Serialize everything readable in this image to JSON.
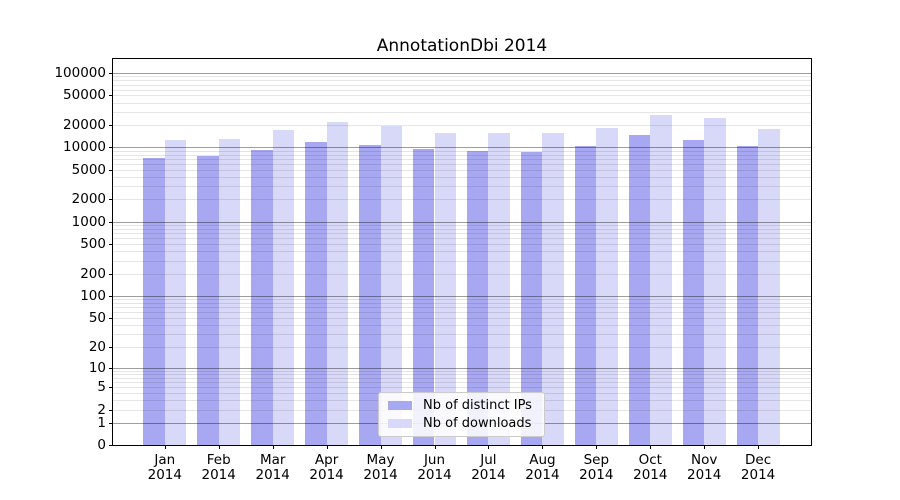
{
  "chart_data": {
    "type": "bar",
    "title": "AnnotationDbi 2014",
    "categories": [
      "Jan",
      "Feb",
      "Mar",
      "Apr",
      "May",
      "Jun",
      "Jul",
      "Aug",
      "Sep",
      "Oct",
      "Nov",
      "Dec"
    ],
    "category_year": "2014",
    "series": [
      {
        "name": "Nb of distinct IPs",
        "color": "#a8a8f2",
        "values": [
          7200,
          7600,
          9200,
          11900,
          10900,
          9600,
          9000,
          8600,
          10500,
          14900,
          12400,
          10300
        ]
      },
      {
        "name": "Nb of downloads",
        "color": "#d8d8f8",
        "values": [
          12400,
          13000,
          17400,
          21800,
          19100,
          15800,
          15600,
          15700,
          18300,
          27400,
          24900,
          17800
        ]
      }
    ],
    "yticks": [
      0,
      1,
      2,
      5,
      10,
      20,
      50,
      100,
      200,
      500,
      1000,
      2000,
      5000,
      10000,
      20000,
      50000,
      100000
    ],
    "ylim": [
      0,
      154000
    ],
    "yscale": "log10(value+1)",
    "grid": "horizontal major+minor",
    "legend_position": "lower center inside plot",
    "xlabel": "",
    "ylabel": ""
  }
}
